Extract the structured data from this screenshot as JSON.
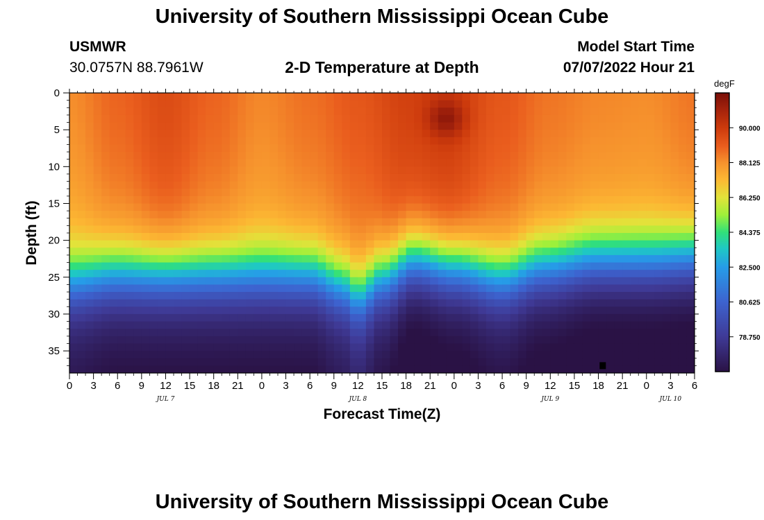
{
  "header": {
    "title": "University of Southern Mississippi Ocean Cube",
    "station_name": "USMWR",
    "station_coords": "30.0757N  88.7961W",
    "subtitle": "2-D Temperature at Depth",
    "model_start_label": "Model Start Time",
    "model_start_value": "07/07/2022 Hour 21"
  },
  "footer": {
    "title": "University of Southern Mississippi Ocean Cube"
  },
  "chart_data": {
    "type": "heatmap",
    "title": "2-D Temperature at Depth",
    "xlabel": "Forecast Time(Z)",
    "ylabel": "Depth (ft)",
    "x_range_hours": [
      0,
      78
    ],
    "ylim": [
      0,
      38
    ],
    "x_ticks": [
      {
        "hour": 0,
        "label": "0"
      },
      {
        "hour": 3,
        "label": "3"
      },
      {
        "hour": 6,
        "label": "6"
      },
      {
        "hour": 9,
        "label": "9"
      },
      {
        "hour": 12,
        "label": "12"
      },
      {
        "hour": 15,
        "label": "15"
      },
      {
        "hour": 18,
        "label": "18"
      },
      {
        "hour": 21,
        "label": "21"
      },
      {
        "hour": 24,
        "label": "0"
      },
      {
        "hour": 27,
        "label": "3"
      },
      {
        "hour": 30,
        "label": "6"
      },
      {
        "hour": 33,
        "label": "9"
      },
      {
        "hour": 36,
        "label": "12"
      },
      {
        "hour": 39,
        "label": "15"
      },
      {
        "hour": 42,
        "label": "18"
      },
      {
        "hour": 45,
        "label": "21"
      },
      {
        "hour": 48,
        "label": "0"
      },
      {
        "hour": 51,
        "label": "3"
      },
      {
        "hour": 54,
        "label": "6"
      },
      {
        "hour": 57,
        "label": "9"
      },
      {
        "hour": 60,
        "label": "12"
      },
      {
        "hour": 63,
        "label": "15"
      },
      {
        "hour": 66,
        "label": "18"
      },
      {
        "hour": 69,
        "label": "21"
      },
      {
        "hour": 72,
        "label": "0"
      },
      {
        "hour": 75,
        "label": "3"
      },
      {
        "hour": 78,
        "label": "6"
      }
    ],
    "y_ticks": [
      0,
      5,
      10,
      15,
      20,
      25,
      30,
      35
    ],
    "date_labels": [
      {
        "hour": 12,
        "label": "JUL 7"
      },
      {
        "hour": 36,
        "label": "JUL 8"
      },
      {
        "hour": 60,
        "label": "JUL 9"
      },
      {
        "hour": 75,
        "label": "JUL 10"
      }
    ],
    "colorbar": {
      "units": "degF",
      "range": [
        76.875,
        91.875
      ],
      "ticks": [
        90.0,
        88.125,
        86.25,
        84.375,
        82.5,
        80.625,
        78.75
      ],
      "tick_labels": [
        "90.000",
        "88.125",
        "86.250",
        "84.375",
        "82.500",
        "80.625",
        "78.750"
      ],
      "stops": [
        {
          "value": 76.875,
          "color": "#2a1245"
        },
        {
          "value": 78.75,
          "color": "#3f3a96"
        },
        {
          "value": 80.625,
          "color": "#3d63cf"
        },
        {
          "value": 82.5,
          "color": "#269ce8"
        },
        {
          "value": 83.5,
          "color": "#1fc8c4"
        },
        {
          "value": 84.375,
          "color": "#31e07a"
        },
        {
          "value": 85.3,
          "color": "#9ef03a"
        },
        {
          "value": 86.25,
          "color": "#e2e33a"
        },
        {
          "value": 87.2,
          "color": "#fcb833"
        },
        {
          "value": 88.125,
          "color": "#f6922d"
        },
        {
          "value": 89.0,
          "color": "#ea5e1e"
        },
        {
          "value": 90.0,
          "color": "#cc3a0c"
        },
        {
          "value": 91.0,
          "color": "#a3220c"
        },
        {
          "value": 91.875,
          "color": "#7a0f08"
        }
      ]
    },
    "field_model": {
      "surface_temp_nodes": [
        {
          "hour": 0,
          "temp": 88.2
        },
        {
          "hour": 6,
          "temp": 88.9
        },
        {
          "hour": 12,
          "temp": 89.5
        },
        {
          "hour": 18,
          "temp": 88.9
        },
        {
          "hour": 24,
          "temp": 88.3
        },
        {
          "hour": 30,
          "temp": 88.7
        },
        {
          "hour": 36,
          "temp": 89.2
        },
        {
          "hour": 42,
          "temp": 89.8
        },
        {
          "hour": 47,
          "temp": 90.0
        },
        {
          "hour": 54,
          "temp": 89.2
        },
        {
          "hour": 60,
          "temp": 88.6
        },
        {
          "hour": 66,
          "temp": 88.3
        },
        {
          "hour": 72,
          "temp": 88.2
        },
        {
          "hour": 78,
          "temp": 88.6
        }
      ],
      "thermocline_depth_nodes": [
        {
          "hour": 0,
          "depth": 25.5
        },
        {
          "hour": 6,
          "depth": 24.5
        },
        {
          "hour": 12,
          "depth": 24.5
        },
        {
          "hour": 18,
          "depth": 24.5
        },
        {
          "hour": 24,
          "depth": 24.5
        },
        {
          "hour": 30,
          "depth": 24.5
        },
        {
          "hour": 34,
          "depth": 26.0
        },
        {
          "hour": 36,
          "depth": 27.5
        },
        {
          "hour": 39,
          "depth": 25.0
        },
        {
          "hour": 43,
          "depth": 22.5
        },
        {
          "hour": 48,
          "depth": 23.5
        },
        {
          "hour": 54,
          "depth": 25.0
        },
        {
          "hour": 59,
          "depth": 23.5
        },
        {
          "hour": 66,
          "depth": 22.5
        },
        {
          "hour": 72,
          "depth": 22.5
        },
        {
          "hour": 78,
          "depth": 22.0
        }
      ],
      "warm_spot": {
        "hour": 47,
        "depth": 3.5,
        "temp": 91.5
      },
      "cold_spot": {
        "hour": 66.5,
        "depth": 37,
        "temp": 76.9
      }
    }
  }
}
